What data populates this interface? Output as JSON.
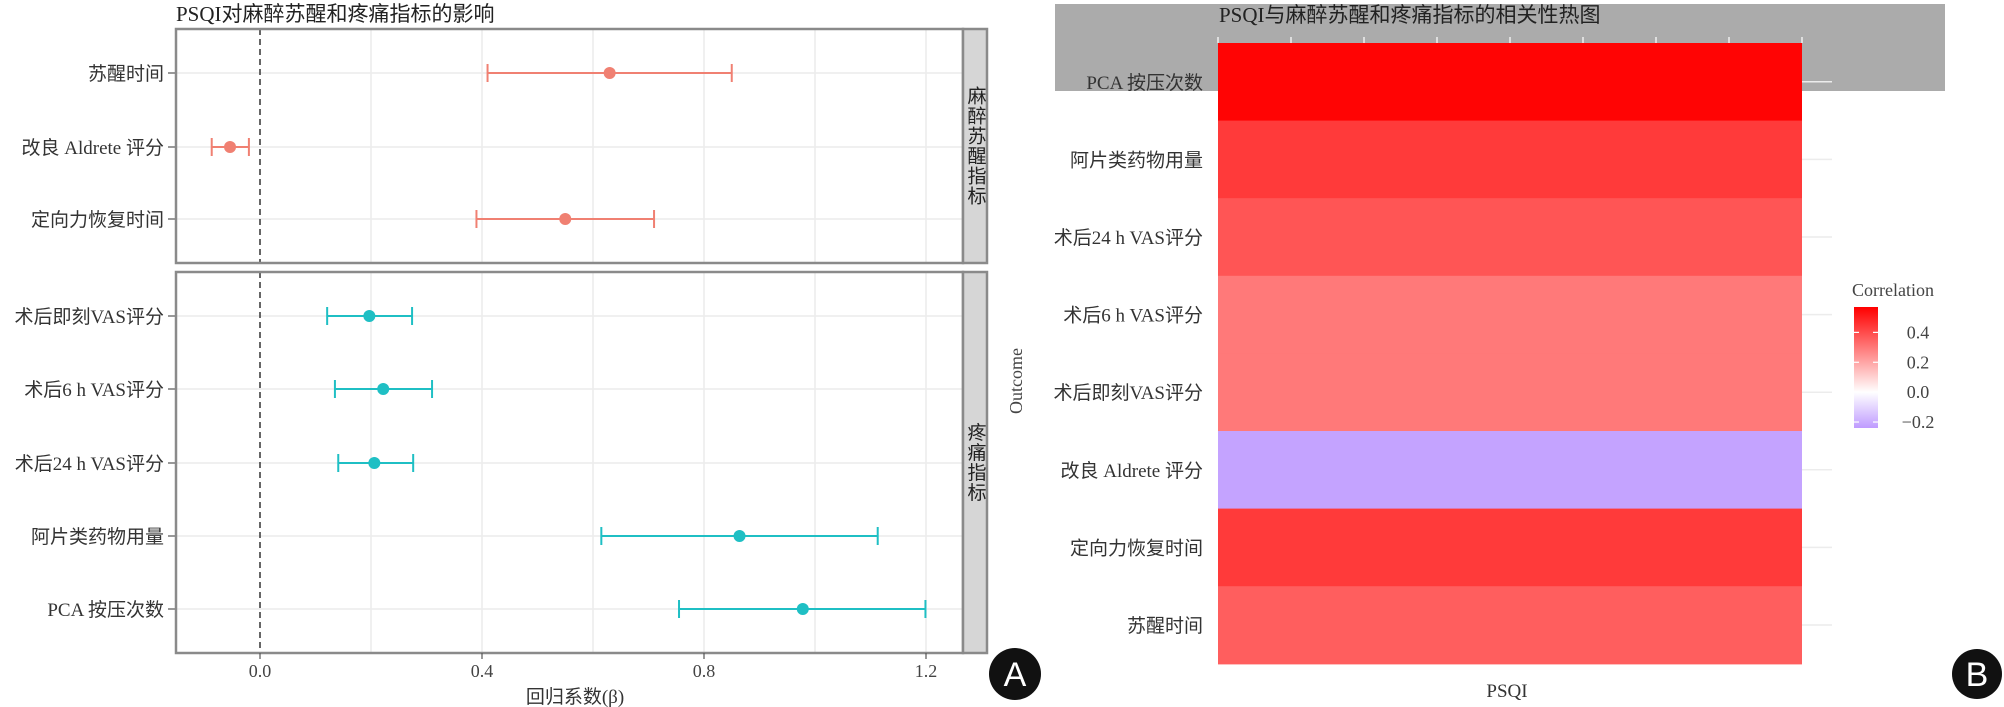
{
  "chart_data": [
    {
      "type": "forest",
      "panel_letter": "A",
      "title": "PSQI对麻醉苏醒和疼痛指标的影响",
      "xlabel": "回归系数(β)",
      "xlim": [
        -0.22,
        1.27
      ],
      "xticks": [
        "0.0",
        "0.4",
        "0.8",
        "1.2"
      ],
      "xtick_values": [
        0,
        0.4,
        0.8,
        1.2
      ],
      "reference_line": 0,
      "facets": [
        {
          "name": "麻醉苏醒指标",
          "color": "#F08072",
          "rows": [
            {
              "label": "苏醒时间",
              "estimate": 0.63,
              "lower": 0.41,
              "upper": 0.85
            },
            {
              "label": "改良 Aldrete 评分",
              "estimate": -0.054,
              "lower": -0.087,
              "upper": -0.02
            },
            {
              "label": "定向力恢复时间",
              "estimate": 0.55,
              "lower": 0.39,
              "upper": 0.71
            }
          ]
        },
        {
          "name": "疼痛指标",
          "color": "#1FBFC4",
          "rows": [
            {
              "label": "术后即刻VAS评分",
              "estimate": 0.197,
              "lower": 0.121,
              "upper": 0.274
            },
            {
              "label": "术后6 h VAS评分",
              "estimate": 0.222,
              "lower": 0.135,
              "upper": 0.31
            },
            {
              "label": "术后24 h VAS评分",
              "estimate": 0.206,
              "lower": 0.141,
              "upper": 0.276
            },
            {
              "label": "阿片类药物用量",
              "estimate": 0.864,
              "lower": 0.615,
              "upper": 1.113
            },
            {
              "label": "PCA 按压次数",
              "estimate": 0.978,
              "lower": 0.755,
              "upper": 1.199
            }
          ]
        }
      ]
    },
    {
      "type": "heatmap",
      "panel_letter": "B",
      "title": "PSQI与麻醉苏醒和疼痛指标的相关性热图",
      "xlabel": "PSQI",
      "ylabel": "Outcome",
      "rows": [
        "PCA 按压次数",
        "阿片类药物用量",
        "术后24 h VAS评分",
        "术后6 h VAS评分",
        "术后即刻VAS评分",
        "改良 Aldrete 评分",
        "定向力恢复时间",
        "苏醒时间"
      ],
      "values": [
        0.56,
        0.44,
        0.38,
        0.3,
        0.3,
        -0.22,
        0.44,
        0.36
      ],
      "legend": {
        "title": "Correlation",
        "ticks": [
          "0.4",
          "0.2",
          "0.0",
          "−0.2"
        ],
        "tick_values": [
          0.4,
          0.2,
          0.0,
          -0.2
        ],
        "range": [
          -0.24,
          0.57
        ],
        "low_color": "#BF9BFF",
        "mid_color": "#FFFFFF",
        "high_color": "#FF0000",
        "placement": "right"
      }
    }
  ]
}
